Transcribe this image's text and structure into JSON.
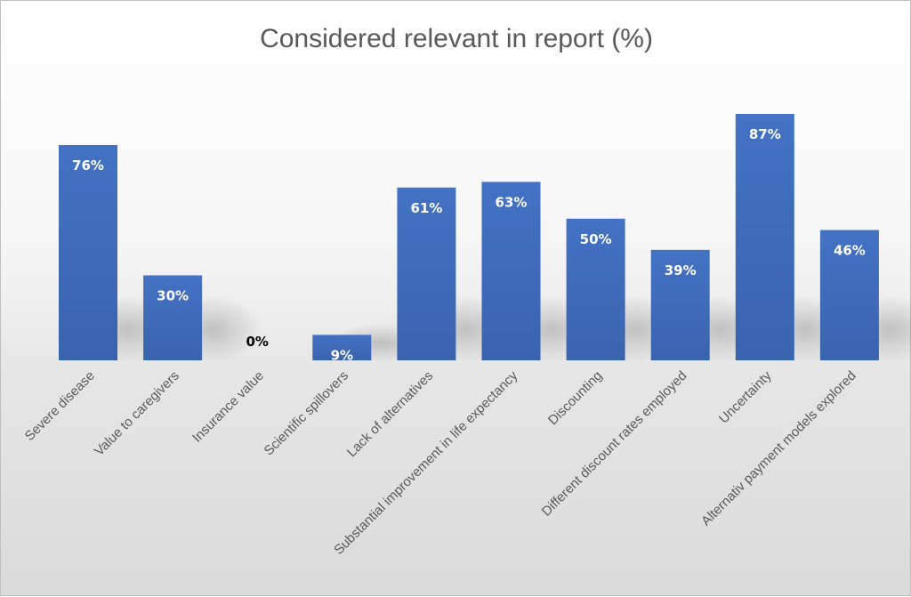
{
  "chart_data": {
    "type": "bar",
    "title": "Considered relevant in report (%)",
    "categories": [
      "Severe disease",
      "Value to caregivers",
      "Insurance value",
      "Scientific spillovers",
      "Lack of alternatives",
      "Substantial improvement in life expectancy",
      "Discounting",
      "Different discount rates employed",
      "Uncertainty",
      "Alternativ payment models explored"
    ],
    "values": [
      76,
      30,
      0,
      9,
      61,
      63,
      50,
      39,
      87,
      46
    ],
    "data_labels": [
      "76%",
      "30%",
      "0%",
      "9%",
      "61%",
      "63%",
      "50%",
      "39%",
      "87%",
      "46%"
    ],
    "xlabel": "",
    "ylabel": "",
    "ylim": [
      0,
      100
    ],
    "grid": false,
    "legend": "none",
    "colors": {
      "bar_top": "#4472C4",
      "bar_bottom": "#3A63AE",
      "label_inside": "#FFFFFF",
      "label_outside": "#000000"
    }
  }
}
